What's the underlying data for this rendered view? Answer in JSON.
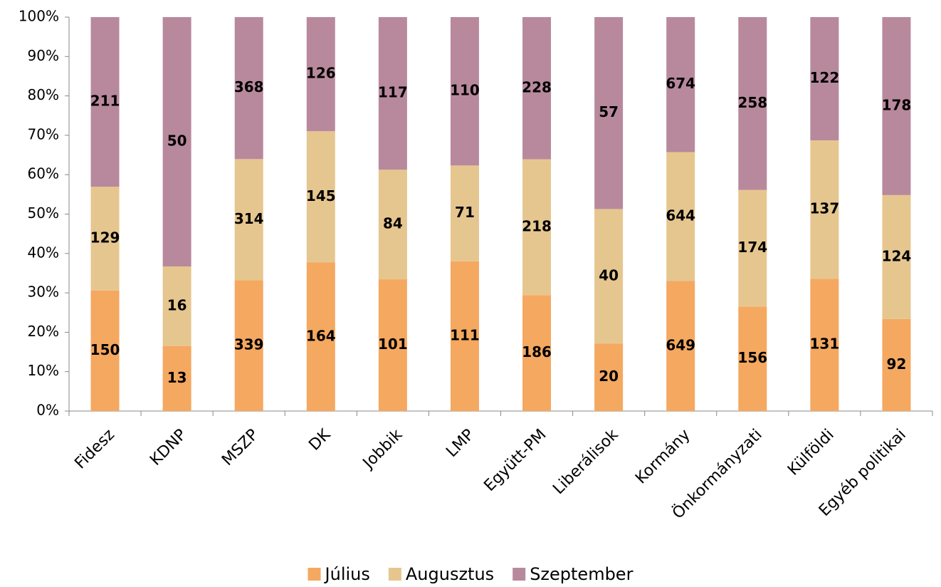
{
  "chart_data": {
    "type": "bar",
    "stacking": "percent",
    "categories": [
      "Fidesz",
      "KDNP",
      "MSZP",
      "DK",
      "Jobbik",
      "LMP",
      "Együtt-PM",
      "Liberálisok",
      "Kormány",
      "Önkormányzati",
      "Külföldi",
      "Egyéb politikai"
    ],
    "series": [
      {
        "name": "Július",
        "color": "#f5a860",
        "values": [
          150,
          13,
          339,
          164,
          101,
          111,
          186,
          20,
          649,
          156,
          131,
          92
        ]
      },
      {
        "name": "Augusztus",
        "color": "#e6c68f",
        "values": [
          129,
          16,
          314,
          145,
          84,
          71,
          218,
          40,
          644,
          174,
          137,
          124
        ]
      },
      {
        "name": "Szeptember",
        "color": "#b8899c",
        "values": [
          211,
          50,
          368,
          126,
          117,
          110,
          228,
          57,
          674,
          258,
          122,
          178
        ]
      }
    ],
    "ylim": [
      0,
      100
    ],
    "yticks": [
      {
        "value": 0,
        "label": "0%"
      },
      {
        "value": 10,
        "label": "10%"
      },
      {
        "value": 20,
        "label": "20%"
      },
      {
        "value": 30,
        "label": "30%"
      },
      {
        "value": 40,
        "label": "40%"
      },
      {
        "value": 50,
        "label": "50%"
      },
      {
        "value": 60,
        "label": "60%"
      },
      {
        "value": 70,
        "label": "70%"
      },
      {
        "value": 80,
        "label": "80%"
      },
      {
        "value": 90,
        "label": "90%"
      },
      {
        "value": 100,
        "label": "100%"
      }
    ],
    "legend": "bottom"
  }
}
